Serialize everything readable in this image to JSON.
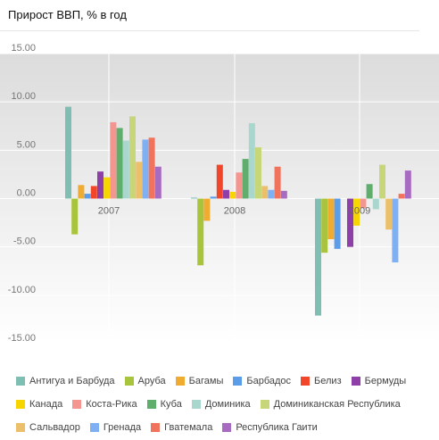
{
  "chart_data": {
    "type": "bar",
    "title": "Прирост ВВП, % в год",
    "xlabel": "",
    "ylabel": "",
    "ylim": [
      -15,
      15
    ],
    "yticks": [
      "15.00",
      "10.00",
      "5.00",
      "0.00",
      "-5.00",
      "-10.00",
      "-15.00"
    ],
    "grid": true,
    "legend_position": "bottom",
    "categories": [
      "2007",
      "2008",
      "2009"
    ],
    "series": [
      {
        "name": "Антигуа и Барбуда",
        "color": "#7fbfb3",
        "values": [
          9.5,
          0.1,
          -12.1
        ]
      },
      {
        "name": "Аруба",
        "color": "#a8c43c",
        "values": [
          -3.7,
          -6.9,
          -5.6
        ]
      },
      {
        "name": "Багамы",
        "color": "#f0ac30",
        "values": [
          1.4,
          -2.3,
          -4.2
        ]
      },
      {
        "name": "Барбадос",
        "color": "#5b9de8",
        "values": [
          0.5,
          0.2,
          -5.2
        ]
      },
      {
        "name": "Белиз",
        "color": "#f2462b",
        "values": [
          1.3,
          3.5,
          0.0
        ]
      },
      {
        "name": "Бермуды",
        "color": "#8e3fa8",
        "values": [
          2.8,
          0.9,
          -5.0
        ]
      },
      {
        "name": "Канада",
        "color": "#f7d500",
        "values": [
          2.2,
          0.7,
          -2.8
        ]
      },
      {
        "name": "Коста-Рика",
        "color": "#f59590",
        "values": [
          7.9,
          2.7,
          -1.0
        ]
      },
      {
        "name": "Куба",
        "color": "#5fae6c",
        "values": [
          7.3,
          4.1,
          1.5
        ]
      },
      {
        "name": "Доминика",
        "color": "#a9d6cd",
        "values": [
          6.0,
          7.8,
          -1.1
        ]
      },
      {
        "name": "Доминиканская Республика",
        "color": "#c6d679",
        "values": [
          8.5,
          5.3,
          3.5
        ]
      },
      {
        "name": "Сальвадор",
        "color": "#ecc06a",
        "values": [
          3.8,
          1.3,
          -3.2
        ]
      },
      {
        "name": "Гренада",
        "color": "#7eb0f3",
        "values": [
          6.1,
          0.9,
          -6.6
        ]
      },
      {
        "name": "Гватемала",
        "color": "#f2735c",
        "values": [
          6.3,
          3.3,
          0.5
        ]
      },
      {
        "name": "Республика Гаити",
        "color": "#a76bc1",
        "values": [
          3.3,
          0.8,
          2.9
        ]
      }
    ]
  }
}
